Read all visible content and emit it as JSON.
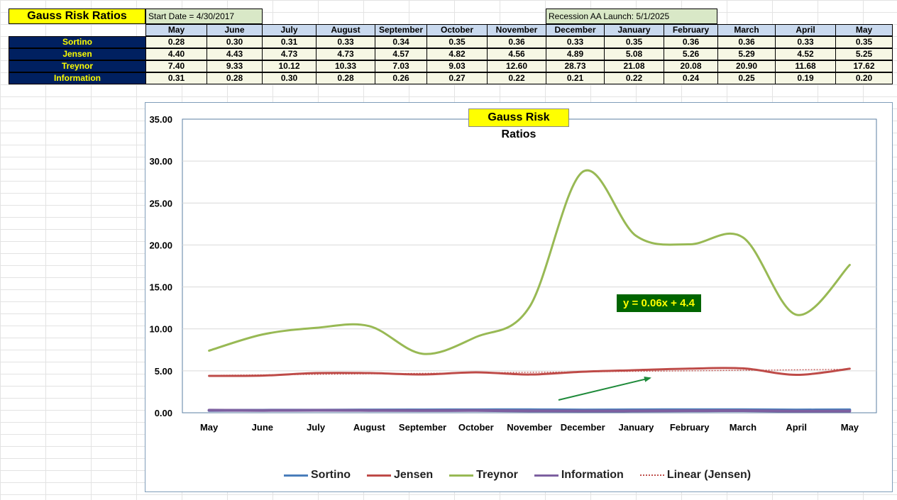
{
  "sheet": {
    "title": "Gauss Risk Ratios",
    "start_date": "Start Date = 4/30/2017",
    "recession_launch": "Recession AA Launch:  5/1/2025",
    "months": [
      "May",
      "June",
      "July",
      "August",
      "September",
      "October",
      "November",
      "December",
      "January",
      "February",
      "March",
      "April",
      "May"
    ],
    "rows": [
      {
        "label": "Sortino",
        "values": [
          "0.28",
          "0.30",
          "0.31",
          "0.33",
          "0.34",
          "0.35",
          "0.36",
          "0.33",
          "0.35",
          "0.36",
          "0.36",
          "0.33",
          "0.35"
        ]
      },
      {
        "label": "Jensen",
        "values": [
          "4.40",
          "4.43",
          "4.73",
          "4.73",
          "4.57",
          "4.82",
          "4.56",
          "4.89",
          "5.08",
          "5.26",
          "5.29",
          "4.52",
          "5.25"
        ]
      },
      {
        "label": "Treynor",
        "values": [
          "7.40",
          "9.33",
          "10.12",
          "10.33",
          "7.03",
          "9.03",
          "12.60",
          "28.73",
          "21.08",
          "20.08",
          "20.90",
          "11.68",
          "17.62"
        ]
      },
      {
        "label": "Information",
        "values": [
          "0.31",
          "0.28",
          "0.30",
          "0.28",
          "0.26",
          "0.27",
          "0.22",
          "0.21",
          "0.22",
          "0.24",
          "0.25",
          "0.19",
          "0.20"
        ]
      }
    ]
  },
  "chart_data": {
    "type": "line",
    "title": "Gauss Risk Ratios",
    "categories": [
      "May",
      "June",
      "July",
      "August",
      "September",
      "October",
      "November",
      "December",
      "January",
      "February",
      "March",
      "April",
      "May"
    ],
    "series": [
      {
        "name": "Sortino",
        "color": "#4a7ebb",
        "values": [
          0.28,
          0.3,
          0.31,
          0.33,
          0.34,
          0.35,
          0.36,
          0.33,
          0.35,
          0.36,
          0.36,
          0.33,
          0.35
        ]
      },
      {
        "name": "Jensen",
        "color": "#be4b48",
        "values": [
          4.4,
          4.43,
          4.73,
          4.73,
          4.57,
          4.82,
          4.56,
          4.89,
          5.08,
          5.26,
          5.29,
          4.52,
          5.25
        ]
      },
      {
        "name": "Treynor",
        "color": "#98b954",
        "values": [
          7.4,
          9.33,
          10.12,
          10.33,
          7.03,
          9.03,
          12.6,
          28.73,
          21.08,
          20.08,
          20.9,
          11.68,
          17.62
        ]
      },
      {
        "name": "Information",
        "color": "#7d60a0",
        "values": [
          0.31,
          0.28,
          0.3,
          0.28,
          0.26,
          0.27,
          0.22,
          0.21,
          0.22,
          0.24,
          0.25,
          0.19,
          0.2
        ]
      }
    ],
    "trendline": {
      "name": "Linear (Jensen)",
      "of_series": "Jensen",
      "color": "#c0504d",
      "slope": 0.06,
      "intercept": 4.4,
      "label": "y = 0.06x + 4.4"
    },
    "yticks": [
      "0.00",
      "5.00",
      "10.00",
      "15.00",
      "20.00",
      "25.00",
      "30.00",
      "35.00"
    ],
    "ylim": [
      0,
      35
    ],
    "grid": true,
    "legend": "bottom",
    "legend_labels": [
      "Sortino",
      "Jensen",
      "Treynor",
      "Information",
      "Linear (Jensen)"
    ],
    "arrow_color": "#1e8a3a"
  }
}
